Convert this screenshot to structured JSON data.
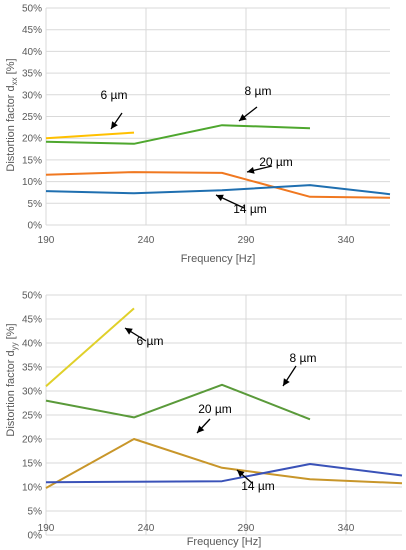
{
  "chart_data": [
    {
      "type": "line",
      "xlabel": "Frequency [Hz]",
      "ylabel": {
        "main": "Distortion factor d",
        "sub": "xx",
        "unit": " [%]"
      },
      "xlim": [
        190,
        362
      ],
      "ylim": [
        0,
        50
      ],
      "x_ticks": [
        "190",
        "240",
        "290",
        "340"
      ],
      "y_ticks": [
        "0%",
        "5%",
        "10%",
        "15%",
        "20%",
        "25%",
        "30%",
        "35%",
        "40%",
        "45%",
        "50%"
      ],
      "grid": true,
      "series": [
        {
          "name": "6 µm",
          "color": "#ffc000",
          "x": [
            190,
            234
          ],
          "y": [
            20.0,
            21.3
          ]
        },
        {
          "name": "8 µm",
          "color": "#4ea72e",
          "x": [
            190,
            234,
            278,
            322
          ],
          "y": [
            19.2,
            18.7,
            23.0,
            22.3
          ]
        },
        {
          "name": "20 µm",
          "color": "#f07820",
          "x": [
            190,
            234,
            278,
            322,
            362
          ],
          "y": [
            11.6,
            12.2,
            12.0,
            6.5,
            6.3
          ]
        },
        {
          "name": "14 µm",
          "color": "#1f6fb0",
          "x": [
            190,
            234,
            278,
            322,
            362
          ],
          "y": [
            7.8,
            7.3,
            8.0,
            9.2,
            7.1
          ]
        }
      ]
    },
    {
      "type": "line",
      "xlabel": "Frequency [Hz]",
      "ylabel": {
        "main": "Distortion factor d",
        "sub": "yy",
        "unit": " [%]"
      },
      "xlim": [
        190,
        368
      ],
      "ylim": [
        0,
        50
      ],
      "x_ticks": [
        "190",
        "240",
        "290",
        "340"
      ],
      "y_ticks": [
        "0%",
        "5%",
        "10%",
        "15%",
        "20%",
        "25%",
        "30%",
        "35%",
        "40%",
        "45%",
        "50%"
      ],
      "grid": true,
      "series": [
        {
          "name": "6 µm",
          "color": "#e0d02a",
          "x": [
            190,
            234
          ],
          "y": [
            31.0,
            47.2
          ]
        },
        {
          "name": "8 µm",
          "color": "#5a9a3a",
          "x": [
            190,
            234,
            278,
            322
          ],
          "y": [
            28.0,
            24.5,
            31.3,
            24.1
          ]
        },
        {
          "name": "20 µm",
          "color": "#c8962a",
          "x": [
            190,
            234,
            278,
            322,
            368
          ],
          "y": [
            9.8,
            20.0,
            14.0,
            11.6,
            10.8
          ]
        },
        {
          "name": "14 µm",
          "color": "#3a52b8",
          "x": [
            190,
            234,
            278,
            322,
            368
          ],
          "y": [
            11.0,
            11.1,
            11.2,
            14.8,
            12.4
          ]
        }
      ]
    }
  ]
}
